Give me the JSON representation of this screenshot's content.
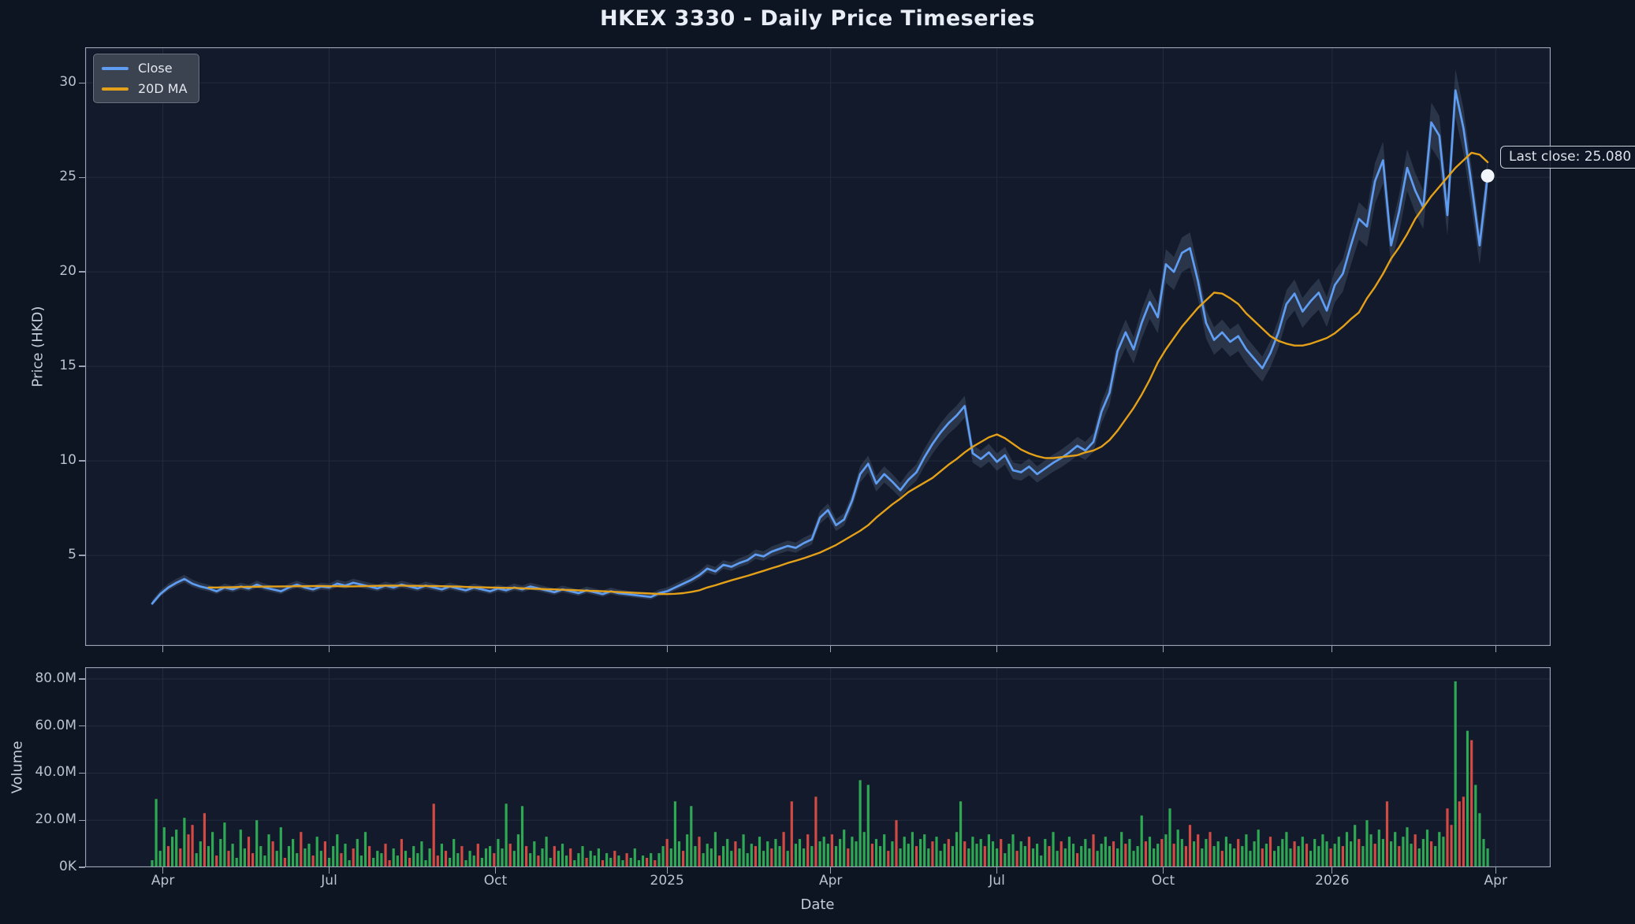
{
  "title": "HKEX 3330 - Daily Price Timeseries",
  "annotation": {
    "text": "Last close: 25.080"
  },
  "legend": {
    "items": [
      "Close",
      "20D MA"
    ]
  },
  "colors": {
    "background": "#0d1422",
    "plot_background": "#121a2b",
    "grid": "#232c3e",
    "spine": "#99a2b2",
    "tick_label": "#b9c2d0",
    "axis_label": "#c3ccd9",
    "title": "#e9edf5",
    "close_line": "#5f9df3",
    "ma_line": "#e3a018",
    "band": "#4d5a75",
    "volume_up": "#2fa854",
    "volume_down": "#d24a43",
    "dot": "#f2f5f9",
    "legend_bg": "#3b4250",
    "legend_text": "#e4e8ee",
    "annotation_text": "#dde2ea"
  },
  "chart_data": [
    {
      "type": "line",
      "title": "HKEX 3330 - Daily Price Timeseries",
      "ylabel": "Price (HKD)",
      "xlabel": "Date",
      "x_unit": "trading_day_index",
      "x_range": [
        -25,
        521.5
      ],
      "y_range": [
        0.21,
        31.88
      ],
      "y_ticks": [
        5,
        10,
        15,
        20,
        25,
        30
      ],
      "x_ticks": {
        "days": [
          4,
          66,
          128,
          192,
          253,
          315,
          377,
          440,
          501
        ],
        "labels": [
          "Apr",
          "Jul",
          "Oct",
          "2025",
          "Apr",
          "Jul",
          "Oct",
          "2026",
          "Apr"
        ]
      },
      "sample_step_days": 3,
      "last_close": 25.08,
      "band": {
        "hi_factor": 1.035,
        "hi_offset": 0.09,
        "lo_factor": 0.952,
        "lo_offset": 0,
        "opacity": 0.42
      },
      "series": [
        {
          "name": "Close",
          "values": [
            2.45,
            2.95,
            3.3,
            3.55,
            3.75,
            3.5,
            3.35,
            3.25,
            3.1,
            3.3,
            3.2,
            3.35,
            3.25,
            3.45,
            3.3,
            3.2,
            3.1,
            3.3,
            3.45,
            3.3,
            3.2,
            3.35,
            3.3,
            3.5,
            3.4,
            3.55,
            3.45,
            3.35,
            3.25,
            3.4,
            3.3,
            3.45,
            3.35,
            3.25,
            3.4,
            3.3,
            3.2,
            3.35,
            3.25,
            3.15,
            3.3,
            3.2,
            3.1,
            3.25,
            3.15,
            3.3,
            3.2,
            3.35,
            3.25,
            3.15,
            3.05,
            3.2,
            3.1,
            3.0,
            3.15,
            3.05,
            2.95,
            3.1,
            3.0,
            2.95,
            2.9,
            2.85,
            2.8,
            3.0,
            3.1,
            3.3,
            3.5,
            3.7,
            3.95,
            4.3,
            4.15,
            4.5,
            4.4,
            4.6,
            4.75,
            5.05,
            4.95,
            5.2,
            5.35,
            5.5,
            5.4,
            5.65,
            5.85,
            7.0,
            7.4,
            6.6,
            6.9,
            7.9,
            9.3,
            9.85,
            8.8,
            9.3,
            8.9,
            8.45,
            9.0,
            9.4,
            10.2,
            10.9,
            11.5,
            12.0,
            12.4,
            12.9,
            10.4,
            10.1,
            10.45,
            9.95,
            10.3,
            9.5,
            9.4,
            9.7,
            9.3,
            9.6,
            9.9,
            10.15,
            10.45,
            10.8,
            10.55,
            11.0,
            12.6,
            13.6,
            15.8,
            16.8,
            15.9,
            17.3,
            18.4,
            17.6,
            20.4,
            20.0,
            21.0,
            21.25,
            19.5,
            17.3,
            16.4,
            16.8,
            16.3,
            16.6,
            15.9,
            15.4,
            14.9,
            15.7,
            16.8,
            18.3,
            18.85,
            17.9,
            18.45,
            18.9,
            17.95,
            19.3,
            19.9,
            21.4,
            22.8,
            22.4,
            24.8,
            25.9,
            21.4,
            23.2,
            25.5,
            24.3,
            23.4,
            27.9,
            27.2,
            23.0,
            29.6,
            27.6,
            24.6,
            21.4,
            25.08
          ]
        },
        {
          "name": "20D MA",
          "values": [
            null,
            null,
            null,
            null,
            null,
            null,
            null,
            3.3,
            3.3,
            3.31,
            3.32,
            3.33,
            3.34,
            3.34,
            3.35,
            3.35,
            3.36,
            3.36,
            3.37,
            3.37,
            3.38,
            3.38,
            3.37,
            3.37,
            3.36,
            3.36,
            3.37,
            3.38,
            3.39,
            3.4,
            3.4,
            3.4,
            3.39,
            3.39,
            3.38,
            3.38,
            3.37,
            3.36,
            3.35,
            3.33,
            3.32,
            3.31,
            3.3,
            3.29,
            3.28,
            3.28,
            3.26,
            3.24,
            3.23,
            3.21,
            3.2,
            3.18,
            3.17,
            3.15,
            3.13,
            3.12,
            3.1,
            3.08,
            3.06,
            3.04,
            3.02,
            3.0,
            2.98,
            2.96,
            2.95,
            2.97,
            3.0,
            3.07,
            3.15,
            3.3,
            3.42,
            3.55,
            3.68,
            3.8,
            3.92,
            4.05,
            4.18,
            4.32,
            4.45,
            4.6,
            4.72,
            4.85,
            5.0,
            5.15,
            5.35,
            5.55,
            5.8,
            6.05,
            6.3,
            6.6,
            7.0,
            7.35,
            7.7,
            8.0,
            8.35,
            8.6,
            8.85,
            9.1,
            9.45,
            9.8,
            10.1,
            10.45,
            10.75,
            11.0,
            11.25,
            11.4,
            11.2,
            10.9,
            10.6,
            10.4,
            10.25,
            10.15,
            10.15,
            10.2,
            10.25,
            10.3,
            10.45,
            10.55,
            10.75,
            11.1,
            11.6,
            12.2,
            12.8,
            13.5,
            14.3,
            15.2,
            15.9,
            16.5,
            17.1,
            17.6,
            18.1,
            18.5,
            18.9,
            18.85,
            18.6,
            18.3,
            17.8,
            17.4,
            17.0,
            16.6,
            16.35,
            16.2,
            16.1,
            16.1,
            16.2,
            16.35,
            16.5,
            16.75,
            17.1,
            17.5,
            17.85,
            18.6,
            19.2,
            19.9,
            20.7,
            21.3,
            22.0,
            22.8,
            23.4,
            24.0,
            24.5,
            25.0,
            25.5,
            25.9,
            26.3,
            26.2,
            25.8
          ]
        }
      ]
    },
    {
      "type": "bar",
      "name": "Volume",
      "ylabel": "Volume",
      "y_range": [
        0,
        85
      ],
      "y_tick_values": [
        0,
        20,
        40,
        60,
        80
      ],
      "y_tick_labels": [
        "0K",
        "20.0M",
        "40.0M",
        "60.0M",
        "80.0M"
      ],
      "bar_step_days": 1.5,
      "unit": "millions_of_shares",
      "bars": "3g,29g,7g,17g,9r,13g,16g,8r,21g,14r,18r,6g,11g,23r,9g,15g,5r,12g,19g,7r,10g,4g,16g,8g,13r,6r,20g,9g,5g,14g,11r,7g,17g,4r,9g,12g,6g,15r,8g,10g,5r,13g,7g,11r,4g,9g,14g,6r,10g,3g,8r,12g,5g,15g,9r,4g,7g,6g,10r,3r,8g,5g,12r,7g,4r,9g,6g,11g,3g,8g,27r,5r,10g,7r,4g,12g,6g,9r,3g,7g,5g,10r,4g,8g,9g,6r,12g,8g,27g,10r,7g,14g,26g,9r,6g,11g,5r,8g,13g,4g,9r,7g,10g,5g,8r,3g,6g,9g,4r,7g,5g,8g,3r,6g,4g,7r,5g,3g,6r,4g,8g,3g,5g,4r,6g,3r,6g,9g,12r,8g,28g,11g,7r,14g,26g,9g,13r,6g,10g,8g,15g,5r,9g,12g,7g,11r,8g,14g,6g,10g,9r,13g,7g,11g,8r,12g,9g,15r,7g,28r,10g,12g,8g,14r,9g,30r,11g,13g,10g,14r,9g,12g,16g,8r,13g,11g,37g,15g,35g,10r,12g,9g,14g,7r,11g,20r,8g,13g,10g,15g,9r,12g,14g,8g,11r,13g,7g,10g,12r,9g,15g,28g,11r,8g,13g,10g,12g,9r,14g,11g,8g,12r,6g,10g,14g,7r,11g,9g,13r,8g,10g,5g,12g,9r,15g,7g,11r,8g,13g,10g,6r,9g,12g,8g,14r,7g,10g,13g,9g,11r,8g,15g,10r,12g,7g,9g,22g,11r,13g,8g,10g,12r,14g,25g,10r,16g,12g,9r,18r,11g,14r,8g,12g,15r,9g,11g,7r,13g,10g,8g,12r,9g,14g,7g,11g,16g,8r,10g,13r,7g,9g,12g,15g,8g,11r,9g,13g,10r,7g,12g,9g,14g,11g,8r,10g,13g,9r,15g,11g,18g,12r,9g,20g,14g,10r,16g,12g,28r,11g,15g,9r,13g,17g,10g,14r,8g,12g,16g,11r,9g,15g,13g,25r,18r,79g,28r,30r,58g,54r,35g,23g,12g,8g"
    }
  ]
}
